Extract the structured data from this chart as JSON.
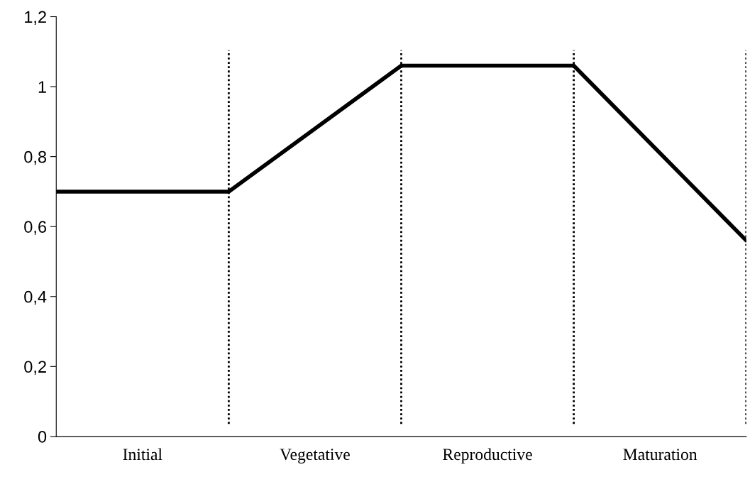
{
  "chart_data": {
    "type": "line",
    "categories": [
      null,
      "Initial",
      null,
      "Vegetative",
      null,
      "Reproductive",
      null,
      "Maturation",
      null
    ],
    "series": [
      {
        "color": "#000000",
        "values": [
          0.7,
          0.7,
          0.7,
          0.88,
          1.06,
          1.06,
          1.06,
          0.81,
          0.56
        ]
      }
    ],
    "ylim": [
      0,
      1.2
    ],
    "yticks": [
      0,
      {
        "value": 0.2,
        "label": "0,2"
      },
      {
        "value": 0.4,
        "label": "0,4"
      },
      {
        "value": 0.6,
        "label": "0,6"
      },
      {
        "value": 0.8,
        "label": "0,8"
      },
      1,
      {
        "value": 1.2,
        "label": "1,2"
      }
    ],
    "grid": "x",
    "legend": false,
    "marker": "none",
    "line_style": "solid"
  }
}
